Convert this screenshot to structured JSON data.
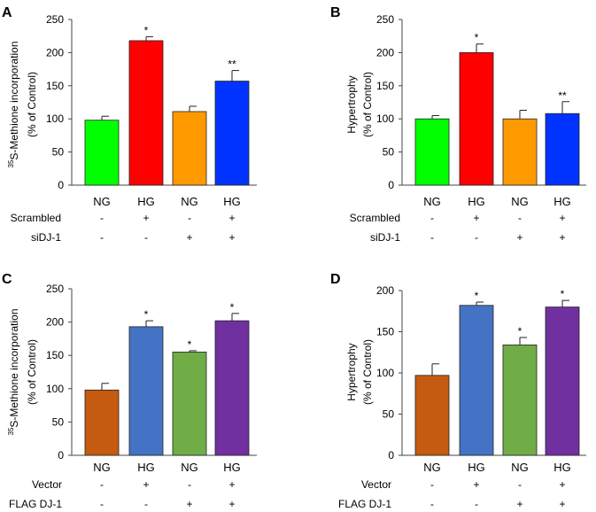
{
  "figure": {
    "conditions_row1_label": "Scrambled",
    "conditions_row2_label": "siDJ-1",
    "conditions_row1_label_cd": "Vector",
    "conditions_row2_label_cd": "FLAG DJ-1"
  },
  "chart_data": [
    {
      "panel": "A",
      "type": "bar",
      "ylabel": "35S-Methione incorporation (% of Control)",
      "ylabel_sup": "35",
      "ylabel_main": "S-Methione incorporation",
      "ylabel_line2": "(% of Control)",
      "ylim": [
        0,
        250
      ],
      "yticks": [
        0,
        50,
        100,
        150,
        200,
        250
      ],
      "categories": [
        "NG",
        "HG",
        "NG",
        "HG"
      ],
      "values": [
        98,
        218,
        111,
        157
      ],
      "errors": [
        6,
        6,
        8,
        16
      ],
      "colors": [
        "#00ff00",
        "#ff0000",
        "#ff9900",
        "#0033ff"
      ],
      "annotations": [
        "",
        "*",
        "",
        "**"
      ],
      "condition_rows": [
        {
          "label": "Scrambled",
          "marks": [
            "-",
            "+",
            "-",
            "+"
          ]
        },
        {
          "label": "siDJ-1",
          "marks": [
            "-",
            "-",
            "+",
            "+"
          ]
        }
      ]
    },
    {
      "panel": "B",
      "type": "bar",
      "ylabel": "Hypertrophy (% of Control)",
      "ylabel_sup": "",
      "ylabel_main": "Hypertrophy",
      "ylabel_line2": "(% of Control)",
      "ylim": [
        0,
        250
      ],
      "yticks": [
        0,
        50,
        100,
        150,
        200,
        250
      ],
      "categories": [
        "NG",
        "HG",
        "NG",
        "HG"
      ],
      "values": [
        100,
        200,
        100,
        108
      ],
      "errors": [
        5,
        13,
        13,
        18
      ],
      "colors": [
        "#00ff00",
        "#ff0000",
        "#ff9900",
        "#0033ff"
      ],
      "annotations": [
        "",
        "*",
        "",
        "**"
      ],
      "condition_rows": [
        {
          "label": "Scrambled",
          "marks": [
            "-",
            "+",
            "-",
            "+"
          ]
        },
        {
          "label": "siDJ-1",
          "marks": [
            "-",
            "-",
            "+",
            "+"
          ]
        }
      ]
    },
    {
      "panel": "C",
      "type": "bar",
      "ylabel": "35S-Methione incorporation (% of Control)",
      "ylabel_sup": "35",
      "ylabel_main": "S-Methione incorporation",
      "ylabel_line2": "(% of Control)",
      "ylim": [
        0,
        250
      ],
      "yticks": [
        0,
        50,
        100,
        150,
        200,
        250
      ],
      "categories": [
        "NG",
        "HG",
        "NG",
        "HG"
      ],
      "values": [
        98,
        193,
        155,
        202
      ],
      "errors": [
        10,
        9,
        2,
        11
      ],
      "colors": [
        "#c55a11",
        "#4472c4",
        "#70ad47",
        "#7030a0"
      ],
      "annotations": [
        "",
        "*",
        "*",
        "*"
      ],
      "condition_rows": [
        {
          "label": "Vector",
          "marks": [
            "-",
            "+",
            "-",
            "+"
          ]
        },
        {
          "label": "FLAG DJ-1",
          "marks": [
            "-",
            "-",
            "+",
            "+"
          ]
        }
      ]
    },
    {
      "panel": "D",
      "type": "bar",
      "ylabel": "Hypertrophy (% of Control)",
      "ylabel_sup": "",
      "ylabel_main": "Hypertrophy",
      "ylabel_line2": "(% of Control)",
      "ylim": [
        0,
        200
      ],
      "yticks": [
        0,
        50,
        100,
        150,
        200
      ],
      "categories": [
        "NG",
        "HG",
        "NG",
        "HG"
      ],
      "values": [
        97,
        182,
        134,
        180
      ],
      "errors": [
        14,
        4,
        9,
        8
      ],
      "colors": [
        "#c55a11",
        "#4472c4",
        "#70ad47",
        "#7030a0"
      ],
      "annotations": [
        "",
        "*",
        "*",
        "*"
      ],
      "condition_rows": [
        {
          "label": "Vector",
          "marks": [
            "-",
            "+",
            "-",
            "+"
          ]
        },
        {
          "label": "FLAG DJ-1",
          "marks": [
            "-",
            "-",
            "+",
            "+"
          ]
        }
      ]
    }
  ]
}
